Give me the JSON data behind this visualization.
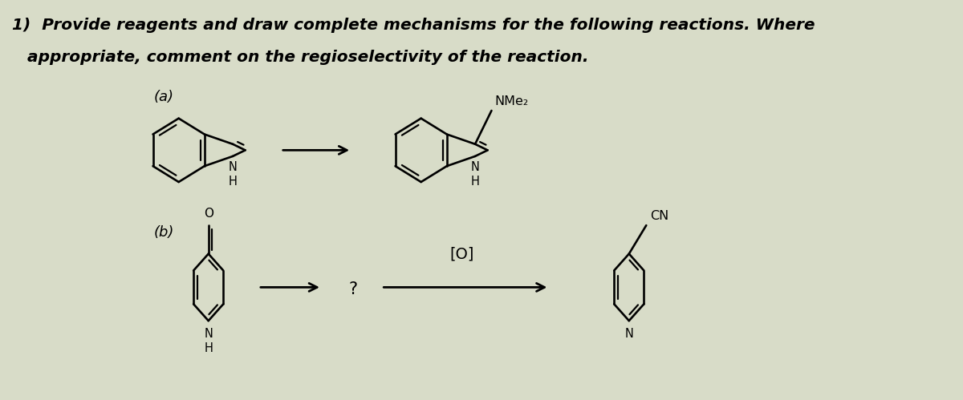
{
  "background_color": "#d8dcc8",
  "title_line1": "1)  Provide reagents and draw complete mechanisms for the following reactions. Where",
  "title_line2": "    appropriate, comment on the regioselectivity of the reaction.",
  "label_a": "(a)",
  "label_b": "(b)",
  "text_nme2": "NMe₂",
  "text_question": "?",
  "text_o_label": "[O]",
  "text_cn": "CN",
  "font_size_title": 14.5,
  "font_size_labels": 13,
  "lw": 1.9,
  "lw_inner": 1.6,
  "arrow_color": "#000000",
  "line_color": "#000000",
  "indole_scale": 0.95,
  "pyridine_scale": 1.0
}
